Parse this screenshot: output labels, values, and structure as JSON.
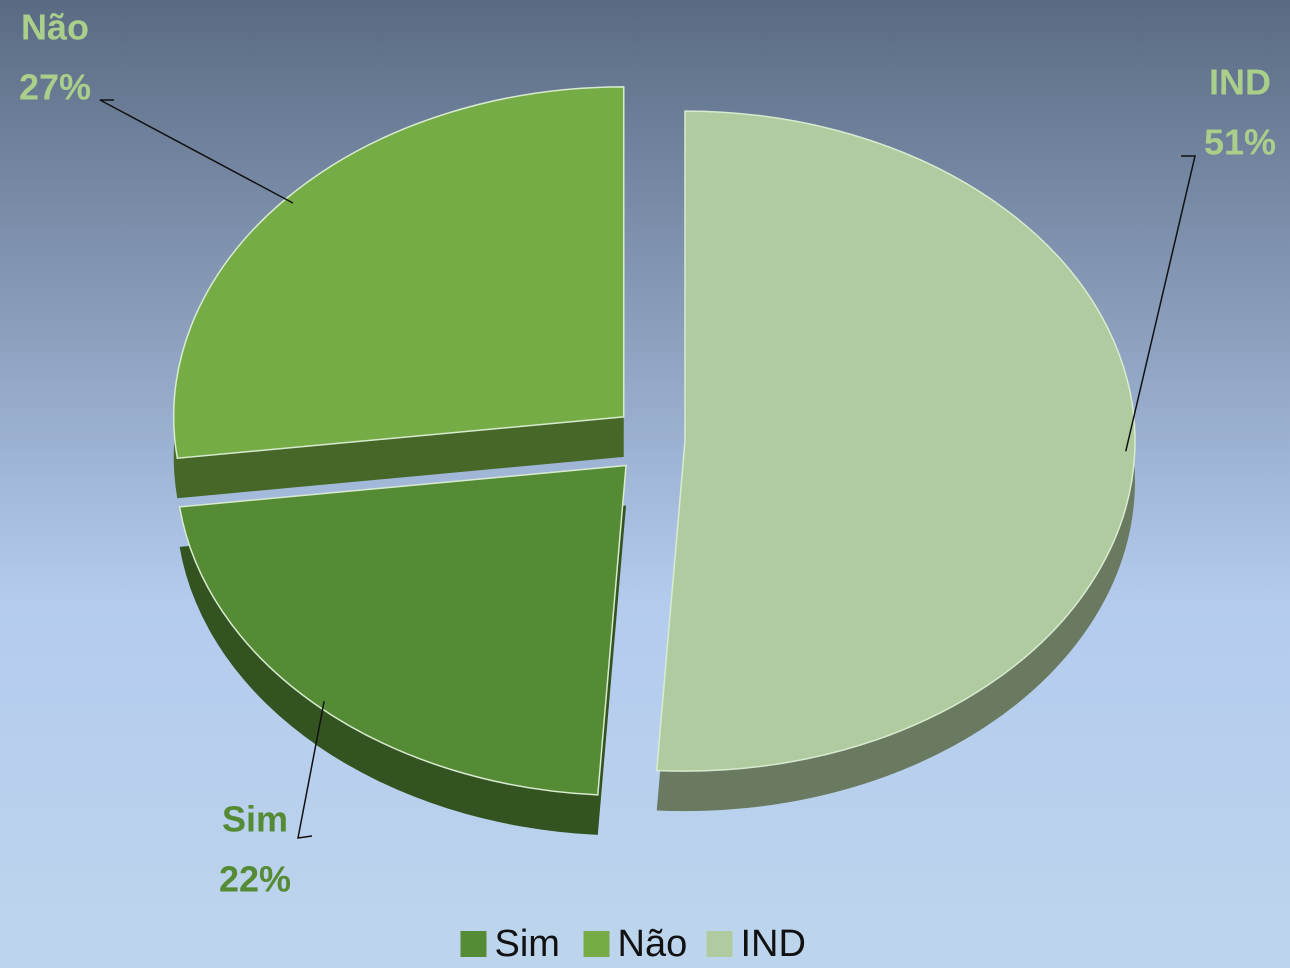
{
  "chart_data": {
    "type": "pie",
    "categories": [
      "Sim",
      "Não",
      "IND"
    ],
    "values": [
      22,
      27,
      51
    ],
    "value_labels": [
      "22%",
      "27%",
      "51%"
    ],
    "colors": [
      "#558b35",
      "#76ac45",
      "#b0cba0"
    ],
    "label_colors": [
      "#558b35",
      "#a9cf8a",
      "#a9cf8a"
    ],
    "legend": "bottom"
  }
}
